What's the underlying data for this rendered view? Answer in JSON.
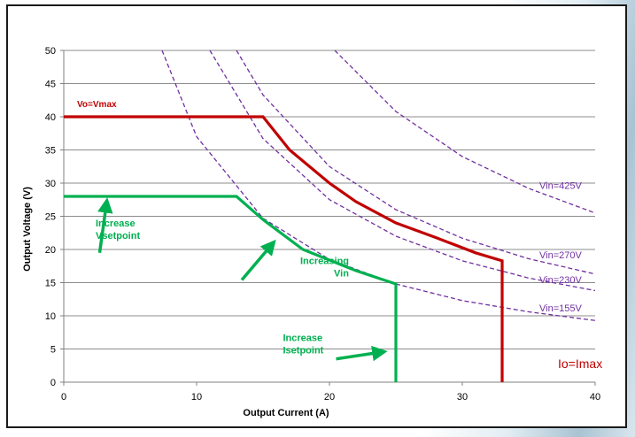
{
  "chart_data": {
    "type": "line",
    "title": "",
    "xlabel": "Output Current (A)",
    "ylabel": "Output Voltage (V)",
    "xlim": [
      0,
      40
    ],
    "ylim": [
      0,
      50
    ],
    "xticks": [
      0,
      10,
      20,
      30,
      40
    ],
    "yticks": [
      0,
      5,
      10,
      15,
      20,
      25,
      30,
      35,
      40,
      45,
      50
    ],
    "grid": "horizontal",
    "legend": "none",
    "series": [
      {
        "name": "Vin=425V",
        "style": "dashed",
        "color": "#7030a0",
        "x": [
          20.4,
          25,
          30,
          35,
          40
        ],
        "y": [
          50,
          40.8,
          34,
          29.2,
          25.5
        ]
      },
      {
        "name": "Vin=270V",
        "style": "dashed",
        "color": "#7030a0",
        "x": [
          13,
          15,
          20,
          25,
          30,
          35,
          40
        ],
        "y": [
          50,
          43.3,
          32.5,
          26,
          21.7,
          18.6,
          16.3
        ]
      },
      {
        "name": "Vin=230V",
        "style": "dashed",
        "color": "#7030a0",
        "x": [
          11,
          15,
          20,
          25,
          30,
          35,
          40
        ],
        "y": [
          50,
          36.7,
          27.5,
          22,
          18.3,
          15.7,
          13.8
        ]
      },
      {
        "name": "Vin=155V",
        "style": "dashed",
        "color": "#7030a0",
        "x": [
          7.4,
          10,
          15,
          20,
          25,
          30,
          35,
          40
        ],
        "y": [
          50,
          37,
          24.7,
          18.5,
          14.8,
          12.3,
          10.6,
          9.3
        ]
      },
      {
        "name": "Vo=Vmax",
        "style": "solid",
        "color": "#c00000",
        "x": [
          0,
          15,
          17,
          20,
          22,
          25,
          28,
          31,
          33,
          33
        ],
        "y": [
          40,
          40,
          35,
          30,
          27.2,
          24,
          21.8,
          19.5,
          18.3,
          0
        ]
      },
      {
        "name": "",
        "style": "solid",
        "color": "#00b050",
        "x": [
          0,
          13,
          15,
          18,
          22,
          25,
          25
        ],
        "y": [
          28,
          28,
          24.5,
          20,
          16.8,
          14.8,
          0
        ]
      }
    ],
    "annotations": [
      {
        "text": "Vo=Vmax",
        "x": 1,
        "y": 42,
        "color": "#c00000"
      },
      {
        "text": "Vin=425V",
        "x": 35.8,
        "y": 29.7,
        "color": "#7030a0"
      },
      {
        "text": "Vin=270V",
        "x": 35.8,
        "y": 19.2,
        "color": "#7030a0"
      },
      {
        "text": "Vin=230V",
        "x": 35.8,
        "y": 15.5,
        "color": "#7030a0"
      },
      {
        "text": "Vin=155V",
        "x": 35.8,
        "y": 11.2,
        "color": "#7030a0"
      },
      {
        "text": "Io=Imax",
        "x": 37.2,
        "y": 2.7,
        "color": "#c00000"
      }
    ],
    "green_labels": [
      {
        "lines": [
          "Increase",
          "Vsetpoint"
        ],
        "x": 2.4,
        "y": 23.5
      },
      {
        "lines": [
          "Increasing",
          "Vin"
        ],
        "x": 17.8,
        "y": 17.8
      },
      {
        "lines": [
          "Increase",
          "Isetpoint"
        ],
        "x": 16.5,
        "y": 6.2
      }
    ],
    "arrows": [
      {
        "from": [
          2.7,
          19.5
        ],
        "to": [
          3.2,
          26.7
        ]
      },
      {
        "from": [
          13.4,
          15.4
        ],
        "to": [
          15.6,
          20.6
        ]
      },
      {
        "from": [
          20.5,
          3.5
        ],
        "to": [
          23.8,
          4.5
        ]
      }
    ]
  }
}
